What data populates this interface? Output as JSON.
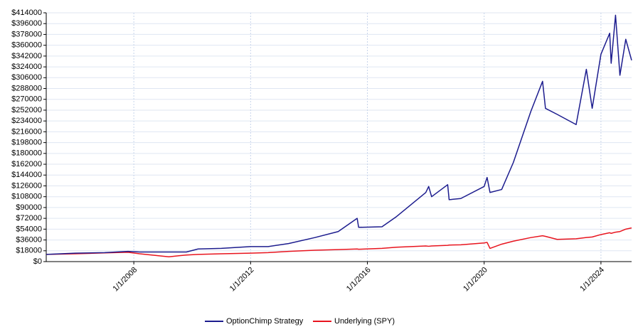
{
  "chart_data": {
    "type": "line",
    "x": [
      2005.0,
      2006.0,
      2007.0,
      2007.8,
      2008.2,
      2009.2,
      2009.8,
      2010.2,
      2011.0,
      2012.0,
      2012.6,
      2013.3,
      2014.2,
      2015.0,
      2015.65,
      2015.7,
      2016.5,
      2017.0,
      2018.0,
      2018.1,
      2018.2,
      2018.75,
      2018.8,
      2019.2,
      2020.0,
      2020.1,
      2020.2,
      2020.6,
      2021.0,
      2021.6,
      2022.0,
      2022.1,
      2022.5,
      2023.15,
      2023.5,
      2023.7,
      2024.0,
      2024.3,
      2024.35,
      2024.5,
      2024.65,
      2024.85,
      2025.05
    ],
    "series": [
      {
        "name": "OptionChimp Strategy",
        "color": "#1c1c8e",
        "values": [
          12000,
          14000,
          15000,
          17000,
          16000,
          16000,
          16000,
          21000,
          22000,
          25000,
          25000,
          30000,
          40000,
          50000,
          72000,
          57000,
          58000,
          75000,
          115000,
          125000,
          108000,
          128000,
          103000,
          105000,
          125000,
          140000,
          115000,
          120000,
          165000,
          250000,
          300000,
          255000,
          245000,
          228000,
          320000,
          255000,
          345000,
          380000,
          330000,
          410000,
          310000,
          370000,
          335000
        ]
      },
      {
        "name": "Underlying (SPY)",
        "color": "#e8141e",
        "values": [
          12000,
          13000,
          14500,
          15500,
          13000,
          8000,
          11000,
          12000,
          13000,
          14000,
          15000,
          17000,
          19000,
          20000,
          21000,
          20500,
          22000,
          24000,
          26000,
          25500,
          26000,
          27000,
          27500,
          28000,
          31000,
          32000,
          22000,
          29000,
          34000,
          40000,
          43000,
          42000,
          37000,
          38000,
          40000,
          41000,
          45000,
          48000,
          47000,
          49000,
          50000,
          54000,
          56000
        ]
      }
    ],
    "xlim": [
      2005.0,
      2025.05
    ],
    "xticks": [
      {
        "value": 2008,
        "label": "1/1/2008"
      },
      {
        "value": 2012,
        "label": "1/1/2012"
      },
      {
        "value": 2016,
        "label": "1/1/2016"
      },
      {
        "value": 2020,
        "label": "1/1/2020"
      },
      {
        "value": 2024,
        "label": "1/1/2024"
      }
    ],
    "ylim": [
      0,
      414000
    ],
    "yticks": [
      {
        "value": 0,
        "label": "$0"
      },
      {
        "value": 18000,
        "label": "$18000"
      },
      {
        "value": 36000,
        "label": "$36000"
      },
      {
        "value": 54000,
        "label": "$54000"
      },
      {
        "value": 72000,
        "label": "$72000"
      },
      {
        "value": 90000,
        "label": "$90000"
      },
      {
        "value": 108000,
        "label": "$108000"
      },
      {
        "value": 126000,
        "label": "$126000"
      },
      {
        "value": 144000,
        "label": "$144000"
      },
      {
        "value": 162000,
        "label": "$162000"
      },
      {
        "value": 180000,
        "label": "$180000"
      },
      {
        "value": 198000,
        "label": "$198000"
      },
      {
        "value": 216000,
        "label": "$216000"
      },
      {
        "value": 234000,
        "label": "$234000"
      },
      {
        "value": 252000,
        "label": "$252000"
      },
      {
        "value": 270000,
        "label": "$270000"
      },
      {
        "value": 288000,
        "label": "$288000"
      },
      {
        "value": 306000,
        "label": "$306000"
      },
      {
        "value": 324000,
        "label": "$324000"
      },
      {
        "value": 342000,
        "label": "$342000"
      },
      {
        "value": 360000,
        "label": "$360000"
      },
      {
        "value": 378000,
        "label": "$378000"
      },
      {
        "value": 396000,
        "label": "$396000"
      },
      {
        "value": 414000,
        "label": "$414000"
      }
    ],
    "grid": true,
    "legend": "bottom"
  }
}
